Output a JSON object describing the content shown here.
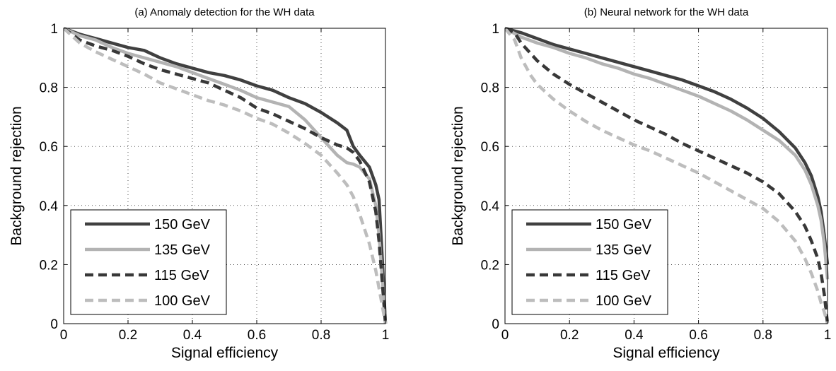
{
  "chart_data": [
    {
      "type": "line",
      "title": "(a) Anomaly detection for the WH data",
      "xlabel": "Signal efficiency",
      "ylabel": "Background rejection",
      "xlim": [
        0,
        1
      ],
      "ylim": [
        0,
        1
      ],
      "xticks": [
        "0",
        "0.2",
        "0.4",
        "0.6",
        "0.8",
        "1"
      ],
      "yticks": [
        "0",
        "0.2",
        "0.4",
        "0.6",
        "0.8",
        "1"
      ],
      "grid": true,
      "legend": "bottom-left",
      "series": [
        {
          "name": "150 GeV",
          "color": "#404040",
          "dash": "solid",
          "x": [
            0,
            0.05,
            0.1,
            0.15,
            0.2,
            0.25,
            0.3,
            0.35,
            0.4,
            0.45,
            0.5,
            0.55,
            0.6,
            0.65,
            0.7,
            0.75,
            0.8,
            0.85,
            0.88,
            0.9,
            0.92,
            0.95,
            0.97,
            0.98,
            0.99,
            1.0
          ],
          "y": [
            1.0,
            0.98,
            0.965,
            0.95,
            0.935,
            0.925,
            0.9,
            0.88,
            0.865,
            0.85,
            0.84,
            0.825,
            0.805,
            0.79,
            0.765,
            0.745,
            0.715,
            0.68,
            0.655,
            0.6,
            0.57,
            0.53,
            0.47,
            0.42,
            0.22,
            0.0
          ]
        },
        {
          "name": "135 GeV",
          "color": "#b3b3b3",
          "dash": "solid",
          "x": [
            0,
            0.05,
            0.1,
            0.15,
            0.2,
            0.25,
            0.3,
            0.35,
            0.4,
            0.45,
            0.5,
            0.55,
            0.6,
            0.65,
            0.7,
            0.75,
            0.8,
            0.85,
            0.88,
            0.9,
            0.92,
            0.95,
            0.97,
            0.98,
            0.99,
            1.0
          ],
          "y": [
            1.0,
            0.975,
            0.96,
            0.935,
            0.915,
            0.9,
            0.885,
            0.87,
            0.85,
            0.83,
            0.81,
            0.79,
            0.765,
            0.75,
            0.735,
            0.69,
            0.63,
            0.57,
            0.545,
            0.54,
            0.53,
            0.49,
            0.4,
            0.3,
            0.15,
            0.0
          ]
        },
        {
          "name": "115 GeV",
          "color": "#383838",
          "dash": "dashed",
          "x": [
            0,
            0.05,
            0.1,
            0.15,
            0.2,
            0.25,
            0.3,
            0.35,
            0.4,
            0.45,
            0.5,
            0.55,
            0.6,
            0.65,
            0.7,
            0.75,
            0.8,
            0.85,
            0.88,
            0.9,
            0.92,
            0.95,
            0.97,
            0.98,
            0.99,
            1.0
          ],
          "y": [
            1.0,
            0.96,
            0.94,
            0.925,
            0.905,
            0.88,
            0.86,
            0.845,
            0.83,
            0.815,
            0.79,
            0.765,
            0.73,
            0.71,
            0.685,
            0.66,
            0.63,
            0.605,
            0.595,
            0.58,
            0.55,
            0.48,
            0.38,
            0.28,
            0.14,
            0.0
          ]
        },
        {
          "name": "100 GeV",
          "color": "#bdbdbd",
          "dash": "dashed",
          "x": [
            0,
            0.05,
            0.1,
            0.15,
            0.2,
            0.25,
            0.3,
            0.35,
            0.4,
            0.45,
            0.5,
            0.55,
            0.6,
            0.65,
            0.7,
            0.75,
            0.8,
            0.85,
            0.88,
            0.9,
            0.92,
            0.95,
            0.97,
            0.98,
            0.99,
            1.0
          ],
          "y": [
            1.0,
            0.95,
            0.92,
            0.895,
            0.87,
            0.845,
            0.815,
            0.795,
            0.775,
            0.755,
            0.74,
            0.72,
            0.695,
            0.675,
            0.645,
            0.61,
            0.57,
            0.51,
            0.47,
            0.43,
            0.37,
            0.27,
            0.18,
            0.12,
            0.06,
            0.0
          ]
        }
      ]
    },
    {
      "type": "line",
      "title": "(b) Neural network for the WH data",
      "xlabel": "Signal efficiency",
      "ylabel": "Background rejection",
      "xlim": [
        0,
        1
      ],
      "ylim": [
        0,
        1
      ],
      "xticks": [
        "0",
        "0.2",
        "0.4",
        "0.6",
        "0.8",
        "1"
      ],
      "yticks": [
        "0",
        "0.2",
        "0.4",
        "0.6",
        "0.8",
        "1"
      ],
      "grid": true,
      "legend": "bottom-left",
      "series": [
        {
          "name": "150 GeV",
          "color": "#404040",
          "dash": "solid",
          "x": [
            0,
            0.05,
            0.1,
            0.15,
            0.2,
            0.25,
            0.3,
            0.35,
            0.4,
            0.45,
            0.5,
            0.55,
            0.6,
            0.65,
            0.7,
            0.75,
            0.8,
            0.85,
            0.9,
            0.93,
            0.95,
            0.97,
            0.98,
            0.99,
            1.0
          ],
          "y": [
            1.0,
            0.985,
            0.965,
            0.945,
            0.93,
            0.915,
            0.9,
            0.885,
            0.87,
            0.855,
            0.84,
            0.825,
            0.805,
            0.785,
            0.76,
            0.73,
            0.695,
            0.65,
            0.595,
            0.545,
            0.5,
            0.43,
            0.38,
            0.3,
            0.2
          ]
        },
        {
          "name": "135 GeV",
          "color": "#b3b3b3",
          "dash": "solid",
          "x": [
            0,
            0.05,
            0.1,
            0.15,
            0.2,
            0.25,
            0.3,
            0.35,
            0.4,
            0.45,
            0.5,
            0.55,
            0.6,
            0.65,
            0.7,
            0.75,
            0.8,
            0.85,
            0.9,
            0.93,
            0.95,
            0.97,
            0.98,
            0.99,
            1.0
          ],
          "y": [
            1.0,
            0.97,
            0.95,
            0.935,
            0.915,
            0.9,
            0.88,
            0.865,
            0.845,
            0.83,
            0.81,
            0.79,
            0.77,
            0.745,
            0.72,
            0.69,
            0.655,
            0.62,
            0.57,
            0.52,
            0.47,
            0.4,
            0.35,
            0.27,
            0.15
          ]
        },
        {
          "name": "115 GeV",
          "color": "#383838",
          "dash": "dashed",
          "x": [
            0,
            0.03,
            0.05,
            0.1,
            0.15,
            0.2,
            0.25,
            0.3,
            0.35,
            0.4,
            0.45,
            0.5,
            0.55,
            0.6,
            0.65,
            0.7,
            0.75,
            0.8,
            0.85,
            0.9,
            0.93,
            0.95,
            0.97,
            0.98,
            0.99,
            1.0
          ],
          "y": [
            1.0,
            0.985,
            0.95,
            0.89,
            0.845,
            0.81,
            0.78,
            0.75,
            0.72,
            0.69,
            0.665,
            0.64,
            0.61,
            0.585,
            0.56,
            0.535,
            0.51,
            0.48,
            0.44,
            0.38,
            0.33,
            0.28,
            0.22,
            0.17,
            0.1,
            0.0
          ]
        },
        {
          "name": "100 GeV",
          "color": "#bdbdbd",
          "dash": "dashed",
          "x": [
            0,
            0.03,
            0.05,
            0.08,
            0.1,
            0.15,
            0.2,
            0.25,
            0.3,
            0.35,
            0.4,
            0.45,
            0.5,
            0.55,
            0.6,
            0.65,
            0.7,
            0.75,
            0.8,
            0.85,
            0.9,
            0.93,
            0.95,
            0.97,
            0.98,
            0.99,
            1.0
          ],
          "y": [
            1.0,
            0.96,
            0.9,
            0.84,
            0.81,
            0.76,
            0.72,
            0.685,
            0.655,
            0.63,
            0.605,
            0.585,
            0.56,
            0.535,
            0.51,
            0.48,
            0.45,
            0.42,
            0.39,
            0.345,
            0.28,
            0.22,
            0.17,
            0.11,
            0.07,
            0.04,
            0.0
          ]
        }
      ]
    }
  ]
}
